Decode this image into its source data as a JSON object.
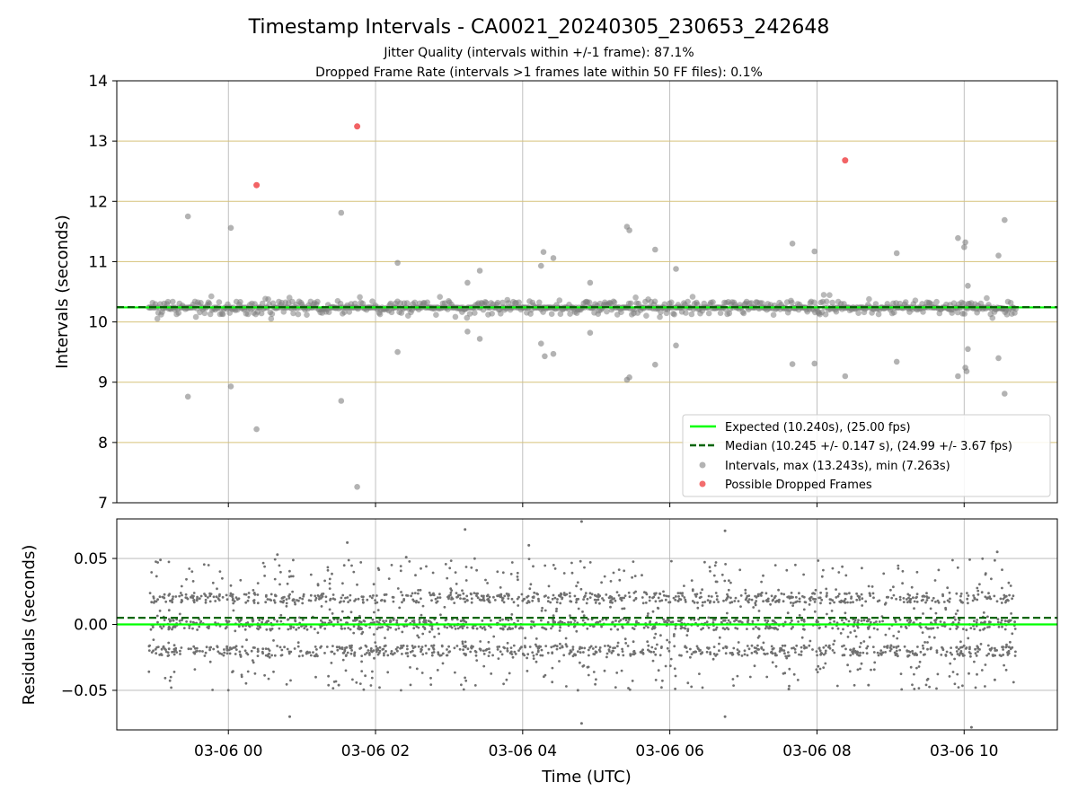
{
  "chart_data": [
    {
      "type": "scatter",
      "title": "Timestamp Intervals - CA0021_20240305_230653_242648",
      "subtitle_lines": [
        "Jitter Quality (intervals within +/-1 frame): 87.1%",
        "Dropped Frame Rate (intervals >1 frames late within 50 FF files): 0.1%"
      ],
      "xlabel": "",
      "ylabel": "Intervals (seconds)",
      "xlim": [
        "2024-03-05 22:29",
        "2024-03-06 11:16"
      ],
      "ylim": [
        7,
        14
      ],
      "yticks": [
        7,
        8,
        9,
        10,
        11,
        12,
        13,
        14
      ],
      "grid": true,
      "expected": 10.24,
      "median": 10.245,
      "series": [
        {
          "name": "Intervals, max (13.243s), min (7.263s)",
          "color": "#808080",
          "outliers": [
            {
              "x": "2024-03-05 23:27",
              "y": 11.75
            },
            {
              "x": "2024-03-05 23:27",
              "y": 8.76
            },
            {
              "x": "2024-03-06 00:02",
              "y": 11.56
            },
            {
              "x": "2024-03-06 00:02",
              "y": 8.93
            },
            {
              "x": "2024-03-06 00:23",
              "y": 8.22
            },
            {
              "x": "2024-03-06 01:32",
              "y": 11.81
            },
            {
              "x": "2024-03-06 01:32",
              "y": 8.69
            },
            {
              "x": "2024-03-06 01:45",
              "y": 7.263
            },
            {
              "x": "2024-03-06 02:18",
              "y": 10.98
            },
            {
              "x": "2024-03-06 02:18",
              "y": 9.5
            },
            {
              "x": "2024-03-06 03:15",
              "y": 10.65
            },
            {
              "x": "2024-03-06 03:15",
              "y": 9.84
            },
            {
              "x": "2024-03-06 03:25",
              "y": 10.85
            },
            {
              "x": "2024-03-06 03:25",
              "y": 9.72
            },
            {
              "x": "2024-03-06 04:17",
              "y": 11.16
            },
            {
              "x": "2024-03-06 04:15",
              "y": 10.93
            },
            {
              "x": "2024-03-06 04:15",
              "y": 9.64
            },
            {
              "x": "2024-03-06 04:18",
              "y": 9.43
            },
            {
              "x": "2024-03-06 04:25",
              "y": 11.06
            },
            {
              "x": "2024-03-06 04:25",
              "y": 9.47
            },
            {
              "x": "2024-03-06 04:55",
              "y": 10.65
            },
            {
              "x": "2024-03-06 04:55",
              "y": 9.82
            },
            {
              "x": "2024-03-06 05:25",
              "y": 11.58
            },
            {
              "x": "2024-03-06 05:27",
              "y": 11.52
            },
            {
              "x": "2024-03-06 05:25",
              "y": 9.04
            },
            {
              "x": "2024-03-06 05:27",
              "y": 9.08
            },
            {
              "x": "2024-03-06 05:48",
              "y": 11.2
            },
            {
              "x": "2024-03-06 05:48",
              "y": 9.29
            },
            {
              "x": "2024-03-06 06:05",
              "y": 10.88
            },
            {
              "x": "2024-03-06 06:05",
              "y": 9.61
            },
            {
              "x": "2024-03-06 07:40",
              "y": 11.3
            },
            {
              "x": "2024-03-06 07:40",
              "y": 9.3
            },
            {
              "x": "2024-03-06 07:58",
              "y": 11.17
            },
            {
              "x": "2024-03-06 07:58",
              "y": 9.31
            },
            {
              "x": "2024-03-06 08:23",
              "y": 9.1
            },
            {
              "x": "2024-03-06 09:05",
              "y": 11.14
            },
            {
              "x": "2024-03-06 09:05",
              "y": 9.34
            },
            {
              "x": "2024-03-06 09:55",
              "y": 11.39
            },
            {
              "x": "2024-03-06 09:55",
              "y": 9.1
            },
            {
              "x": "2024-03-06 10:01",
              "y": 11.32
            },
            {
              "x": "2024-03-06 10:00",
              "y": 11.24
            },
            {
              "x": "2024-03-06 10:01",
              "y": 9.24
            },
            {
              "x": "2024-03-06 10:02",
              "y": 9.18
            },
            {
              "x": "2024-03-06 10:03",
              "y": 9.55
            },
            {
              "x": "2024-03-06 10:03",
              "y": 10.6
            },
            {
              "x": "2024-03-06 10:28",
              "y": 11.1
            },
            {
              "x": "2024-03-06 10:28",
              "y": 9.4
            },
            {
              "x": "2024-03-06 10:33",
              "y": 11.69
            },
            {
              "x": "2024-03-06 10:33",
              "y": 8.81
            }
          ]
        },
        {
          "name": "Possible Dropped Frames",
          "color": "#f0484a",
          "points": [
            {
              "x": "2024-03-06 00:23",
              "y": 12.27
            },
            {
              "x": "2024-03-06 01:45",
              "y": 13.243
            },
            {
              "x": "2024-03-06 08:23",
              "y": 12.68
            }
          ]
        }
      ],
      "legend": {
        "placement": "lower right",
        "entries": [
          {
            "label": "Expected (10.240s), (25.00 fps)",
            "color": "#00ff00",
            "style": "solid line"
          },
          {
            "label": "Median (10.245 +/- 0.147 s), (24.99 +/- 3.67 fps)",
            "color": "#006400",
            "style": "dashed line"
          },
          {
            "label": "Intervals, max (13.243s), min (7.263s)",
            "color": "#808080",
            "style": "marker"
          },
          {
            "label": "Possible Dropped Frames",
            "color": "#f0484a",
            "style": "marker"
          }
        ]
      }
    },
    {
      "type": "scatter",
      "title": "",
      "xlabel": "Time (UTC)",
      "ylabel": "Residuals (seconds)",
      "xlim": [
        "2024-03-05 22:29",
        "2024-03-06 11:16"
      ],
      "ylim": [
        -0.08,
        0.08
      ],
      "xticks": [
        "03-06 00",
        "03-06 02",
        "03-06 04",
        "03-06 06",
        "03-06 08",
        "03-06 10"
      ],
      "yticks": [
        "0.05",
        "0.00",
        "−0.05"
      ],
      "grid": true,
      "expected_residual": 0.0,
      "median_residual": 0.005,
      "residual_bands": [
        -0.02,
        0.0,
        0.02
      ],
      "residual_spread": [
        -0.05,
        0.05
      ],
      "residual_outliers": [
        {
          "x": "2024-03-06 00:40",
          "y": 0.053
        },
        {
          "x": "2024-03-06 01:37",
          "y": 0.062
        },
        {
          "x": "2024-03-06 02:25",
          "y": 0.051
        },
        {
          "x": "2024-03-06 03:13",
          "y": 0.072
        },
        {
          "x": "2024-03-06 04:05",
          "y": 0.06
        },
        {
          "x": "2024-03-06 04:48",
          "y": 0.078
        },
        {
          "x": "2024-03-06 06:45",
          "y": 0.071
        },
        {
          "x": "2024-03-06 10:27",
          "y": 0.055
        },
        {
          "x": "2024-03-06 00:50",
          "y": -0.07
        },
        {
          "x": "2024-03-06 01:30",
          "y": -0.046
        },
        {
          "x": "2024-03-06 04:45",
          "y": -0.05
        },
        {
          "x": "2024-03-06 04:48",
          "y": -0.075
        },
        {
          "x": "2024-03-06 06:45",
          "y": -0.07
        },
        {
          "x": "2024-03-06 07:37",
          "y": -0.049
        },
        {
          "x": "2024-03-06 08:42",
          "y": -0.046
        },
        {
          "x": "2024-03-06 10:25",
          "y": -0.042
        },
        {
          "x": "2024-03-06 10:06",
          "y": -0.078
        }
      ],
      "series": [
        {
          "name": "Residuals",
          "color": "#707070"
        }
      ]
    }
  ]
}
